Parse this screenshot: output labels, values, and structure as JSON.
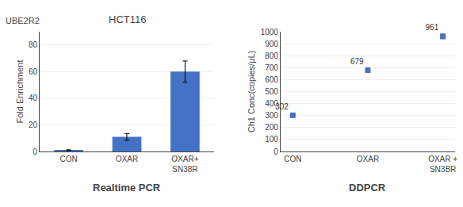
{
  "chart_data": [
    {
      "type": "bar",
      "title": "HCT116",
      "subtitle": "UBE2R2",
      "ylabel": "Fold Enrichment",
      "categories": [
        "CON",
        "OXAR",
        "OXAR+\nSN38R"
      ],
      "values": [
        1.0,
        11.0,
        60.0
      ],
      "errors": [
        0.3,
        2.5,
        8.0
      ],
      "color": "#4472C4",
      "ylim": [
        0,
        90
      ],
      "yticks": [
        0,
        20,
        40,
        60,
        80
      ],
      "grid": true,
      "annotations": [
        "Realtime PCR"
      ]
    },
    {
      "type": "scatter",
      "ylabel": "Ch1 Conc(copies/μL)",
      "categories": [
        "CON",
        "OXAR",
        "OXAR +\nSN3BR"
      ],
      "values": [
        302,
        679,
        961
      ],
      "errors": [
        5,
        12,
        18
      ],
      "color": "#4472C4",
      "marker": "square",
      "data_labels": true,
      "ylim": [
        0,
        1000
      ],
      "yticks": [
        0,
        100,
        200,
        300,
        400,
        500,
        600,
        700,
        800,
        900,
        1000
      ],
      "grid": true,
      "annotations": [
        "DDPCR"
      ]
    }
  ]
}
